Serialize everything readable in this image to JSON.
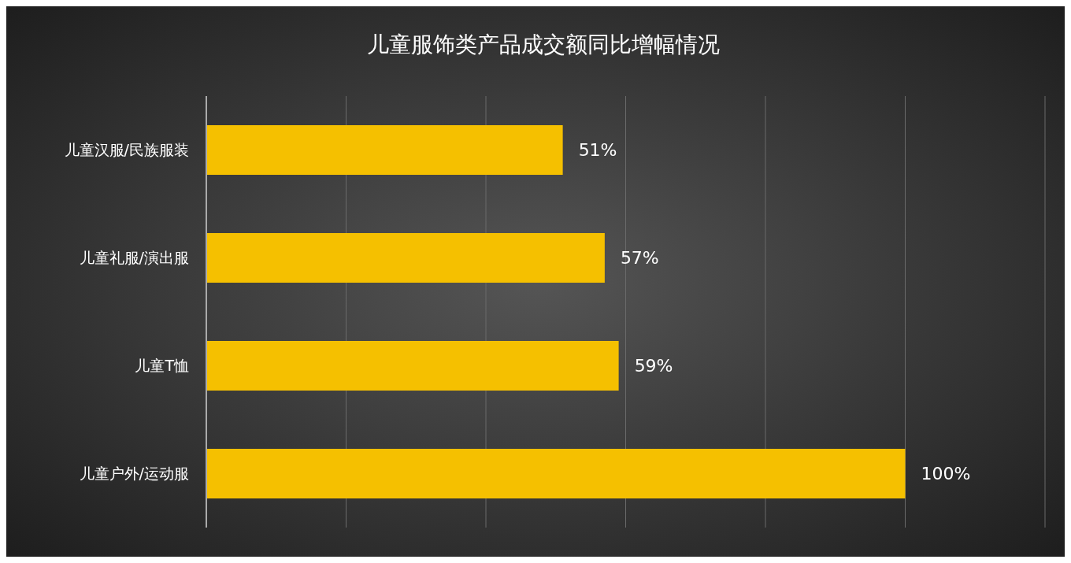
{
  "chart_data": {
    "type": "bar",
    "orientation": "horizontal",
    "title": "儿童服饰类产品成交额同比增幅情况",
    "categories": [
      "儿童汉服/民族服装",
      "儿童礼服/演出服",
      "儿童T恤",
      "儿童户外/运动服"
    ],
    "values": [
      51,
      57,
      59,
      100
    ],
    "value_labels": [
      "51%",
      "57%",
      "59%",
      "100%"
    ],
    "color": "#f5c000",
    "xlim": [
      0,
      120
    ],
    "xticks": [
      {
        "value": 0,
        "label": null
      },
      {
        "value": 20,
        "label": null
      },
      {
        "value": 40,
        "label": null
      },
      {
        "value": 60,
        "label": null
      },
      {
        "value": 80,
        "label": null
      },
      {
        "value": 100,
        "label": null
      },
      {
        "value": 120,
        "label": null
      }
    ],
    "grid": "x",
    "tick_labels": "y"
  }
}
